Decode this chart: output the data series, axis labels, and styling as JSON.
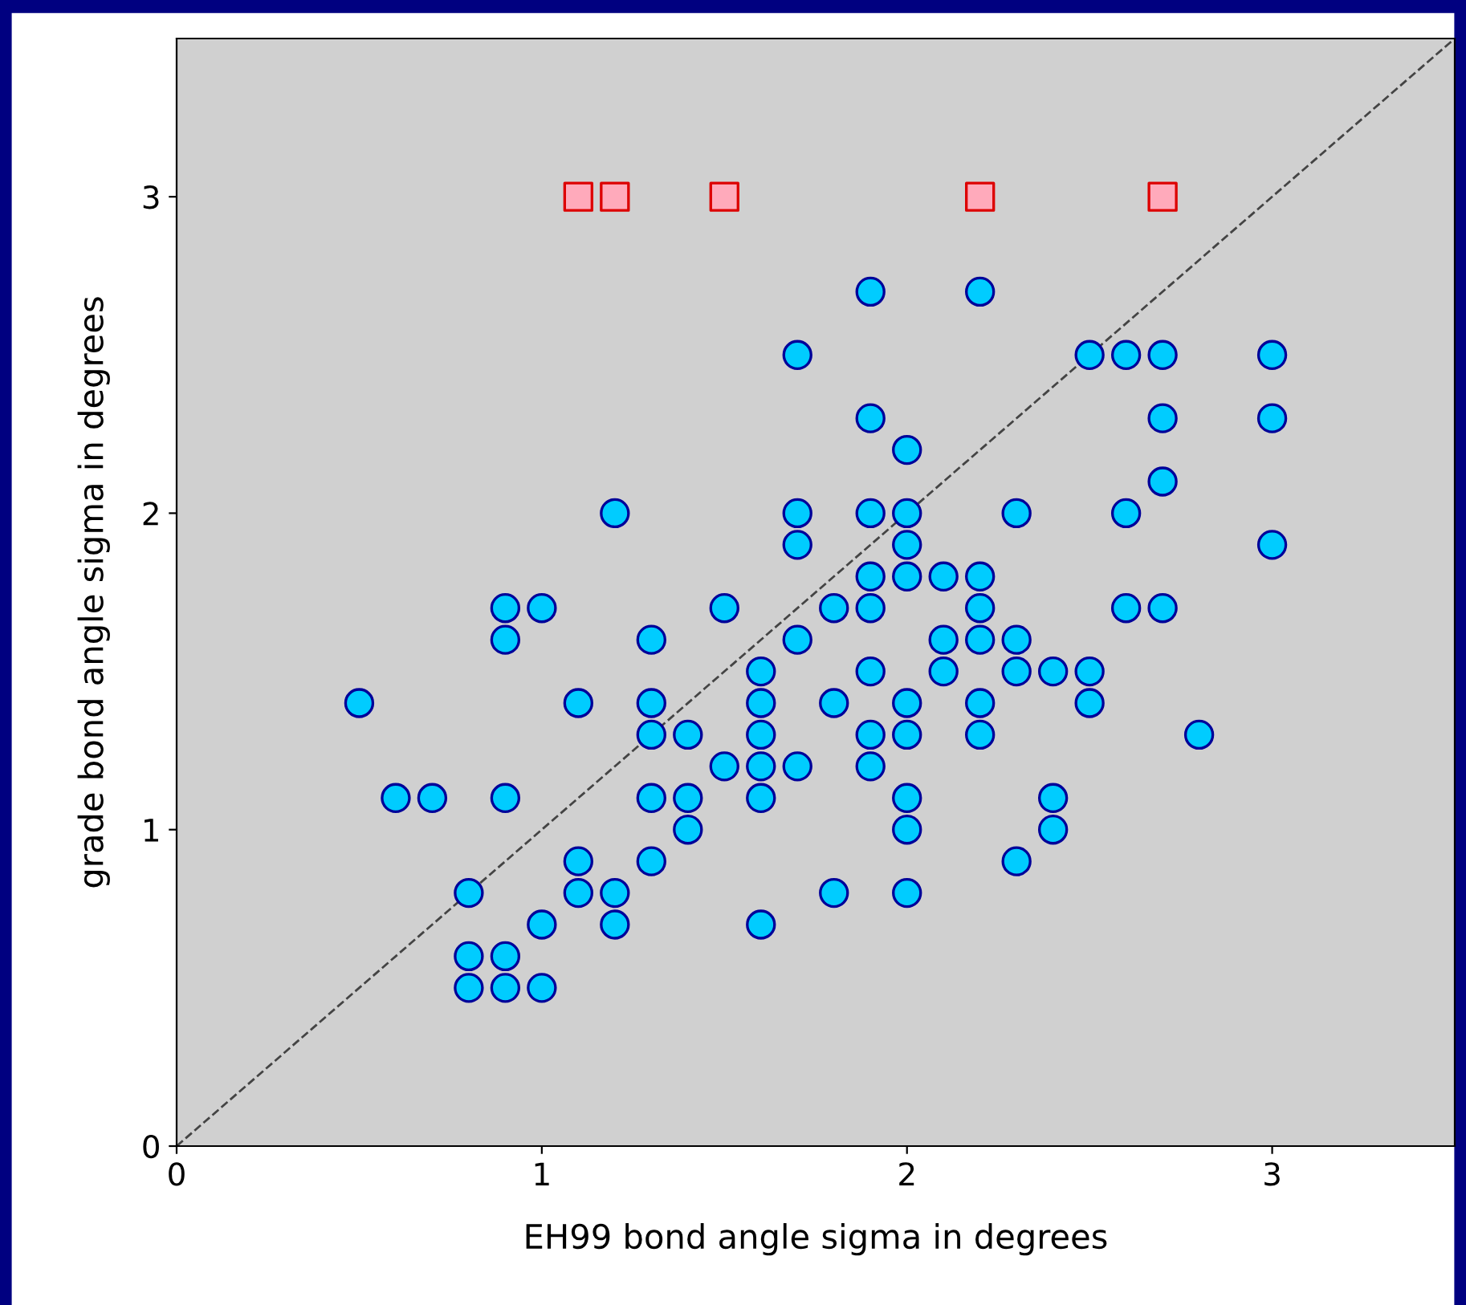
{
  "chart_data": {
    "type": "scatter",
    "xlabel": "EH99 bond angle sigma in degrees",
    "ylabel": "grade bond angle sigma in degrees",
    "xlim": [
      0,
      3.5
    ],
    "ylim": [
      0,
      3.5
    ],
    "xticks": [
      0,
      1,
      2,
      3
    ],
    "yticks": [
      0,
      1,
      2,
      3
    ],
    "grid": false,
    "series": [
      {
        "marker": "circle",
        "color": "#00ccff",
        "x": [
          1.9,
          2.2,
          1.7,
          2.5,
          2.6,
          2.7,
          3.0,
          1.9,
          2.7,
          3.0,
          2.0,
          2.7,
          1.2,
          1.7,
          1.9,
          2.0,
          2.3,
          2.6,
          1.7,
          2.0,
          3.0,
          1.9,
          2.0,
          2.1,
          2.2,
          0.9,
          1.0,
          1.5,
          1.8,
          1.9,
          2.2,
          2.6,
          2.7,
          0.9,
          1.3,
          1.7,
          2.1,
          2.2,
          2.3,
          1.6,
          1.9,
          2.1,
          2.3,
          2.4,
          2.5,
          0.5,
          1.1,
          1.3,
          1.6,
          1.8,
          2.0,
          2.2,
          2.5,
          1.3,
          1.4,
          1.6,
          1.9,
          2.0,
          2.2,
          2.8,
          1.5,
          1.6,
          1.7,
          1.9,
          0.6,
          0.7,
          0.9,
          1.3,
          1.4,
          1.6,
          2.0,
          2.4,
          1.4,
          2.0,
          2.4,
          1.1,
          1.3,
          2.3,
          0.8,
          1.1,
          1.2,
          1.8,
          2.0,
          1.0,
          1.2,
          1.6,
          0.8,
          0.9,
          0.8,
          0.9,
          1.0
        ],
        "values": [
          2.7,
          2.7,
          2.5,
          2.5,
          2.5,
          2.5,
          2.5,
          2.3,
          2.3,
          2.3,
          2.2,
          2.1,
          2.0,
          2.0,
          2.0,
          2.0,
          2.0,
          2.0,
          1.9,
          1.9,
          1.9,
          1.8,
          1.8,
          1.8,
          1.8,
          1.7,
          1.7,
          1.7,
          1.7,
          1.7,
          1.7,
          1.7,
          1.7,
          1.6,
          1.6,
          1.6,
          1.6,
          1.6,
          1.6,
          1.5,
          1.5,
          1.5,
          1.5,
          1.5,
          1.5,
          1.4,
          1.4,
          1.4,
          1.4,
          1.4,
          1.4,
          1.4,
          1.4,
          1.3,
          1.3,
          1.3,
          1.3,
          1.3,
          1.3,
          1.3,
          1.2,
          1.2,
          1.2,
          1.2,
          1.1,
          1.1,
          1.1,
          1.1,
          1.1,
          1.1,
          1.1,
          1.1,
          1.0,
          1.0,
          1.0,
          0.9,
          0.9,
          0.9,
          0.8,
          0.8,
          0.8,
          0.8,
          0.8,
          0.7,
          0.7,
          0.7,
          0.6,
          0.6,
          0.5,
          0.5,
          0.5
        ]
      },
      {
        "marker": "square",
        "color": "#ffaabb",
        "x": [
          1.1,
          1.2,
          1.5,
          2.2,
          2.7
        ],
        "values": [
          3,
          3,
          3,
          3,
          3
        ]
      },
      {
        "type": "line",
        "line_style": "dashed",
        "color": "#444444",
        "x": [
          0,
          3.5
        ],
        "values": [
          0,
          3.5
        ]
      }
    ]
  }
}
